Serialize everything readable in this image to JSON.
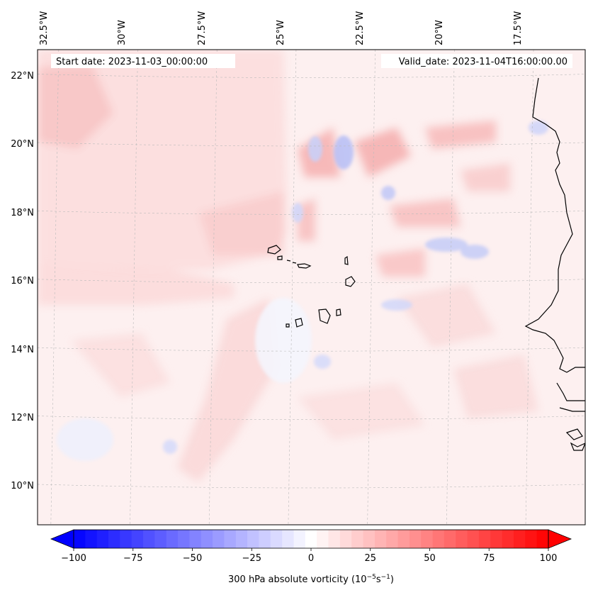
{
  "map": {
    "start_label": "Start date: 2023-11-03_00:00:00",
    "valid_label": "Valid_date: 2023-11-04T16:00:00.00",
    "lon_labels": [
      "32.5°W",
      "30°W",
      "27.5°W",
      "25°W",
      "22.5°W",
      "20°W",
      "17.5°W"
    ],
    "lat_labels": [
      "22°N",
      "20°N",
      "18°N",
      "16°N",
      "14°N",
      "12°N",
      "10°N"
    ],
    "lon_values": [
      -32.5,
      -30,
      -27.5,
      -25,
      -22.5,
      -20,
      -17.5
    ],
    "lat_values": [
      22,
      20,
      18,
      16,
      14,
      12,
      10
    ],
    "extent": {
      "lon_min": -33.1,
      "lon_max": -15.8,
      "lat_min": 8.9,
      "lat_max": 22.8
    }
  },
  "colorbar": {
    "label_prefix": "300 hPa absolute vorticity (10",
    "label_exp1": "−5",
    "label_mid": "s",
    "label_exp2": "−1",
    "label_suffix": ")",
    "ticks": [
      "−100",
      "−75",
      "−50",
      "−25",
      "0",
      "25",
      "50",
      "75",
      "100"
    ],
    "tick_values": [
      -100,
      -75,
      -50,
      -25,
      0,
      25,
      50,
      75,
      100
    ],
    "range": [
      -100,
      100
    ],
    "levels": 41,
    "colormap": "bwr"
  },
  "colors": {
    "coast": "#000000",
    "grid": "#bbbbbb",
    "ocean_base": "#fdf1f1"
  }
}
